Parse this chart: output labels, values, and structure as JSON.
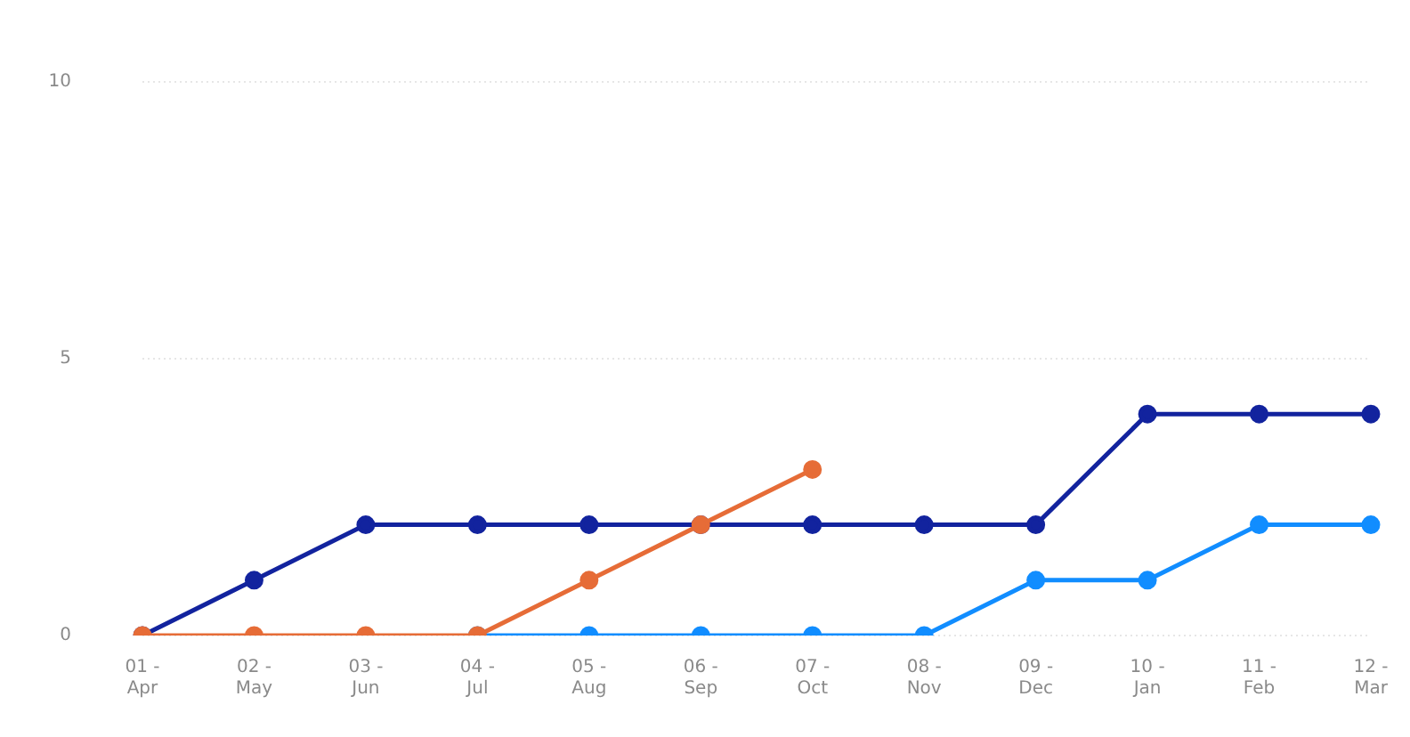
{
  "chart_data": {
    "type": "line",
    "categories": [
      "01 - Apr",
      "02 - May",
      "03 - Jun",
      "04 - Jul",
      "05 - Aug",
      "06 - Sep",
      "07 - Oct",
      "08 - Nov",
      "09 - Dec",
      "10 - Jan",
      "11 - Feb",
      "12 - Mar"
    ],
    "series": [
      {
        "color": "#12239e",
        "values": [
          0,
          1,
          2,
          2,
          2,
          2,
          2,
          2,
          2,
          4,
          4,
          4
        ]
      },
      {
        "color": "#118dff",
        "values": [
          null,
          null,
          null,
          0,
          0,
          0,
          0,
          0,
          1,
          1,
          2,
          2
        ]
      },
      {
        "color": "#e66c37",
        "values": [
          0,
          0,
          0,
          0,
          1,
          2,
          3,
          null,
          null,
          null,
          null,
          null
        ]
      }
    ],
    "ylim": [
      0,
      10
    ],
    "yticks": [
      0,
      5,
      10
    ],
    "grid": "y",
    "marker": "circle",
    "line_style": "solid"
  }
}
